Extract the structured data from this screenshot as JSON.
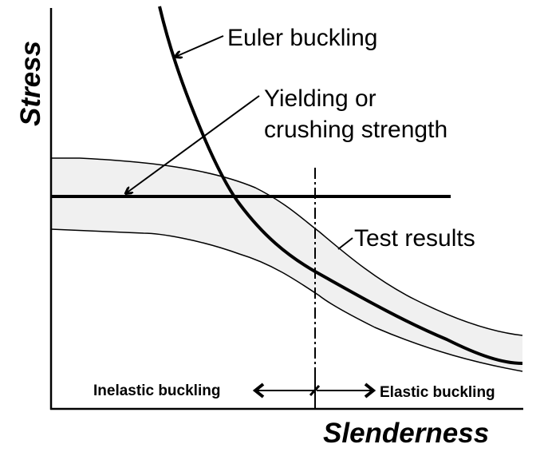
{
  "labels": {
    "euler": "Euler buckling",
    "yield_line1": "Yielding or",
    "yield_line2": "crushing strength",
    "test": "Test results",
    "inelastic": "Inelastic buckling",
    "elastic": "Elastic buckling"
  },
  "axes": {
    "y_label": "Stress",
    "x_label": "Slenderness"
  },
  "colors": {
    "band_fill": "#f0f0f0",
    "line": "#000000"
  }
}
